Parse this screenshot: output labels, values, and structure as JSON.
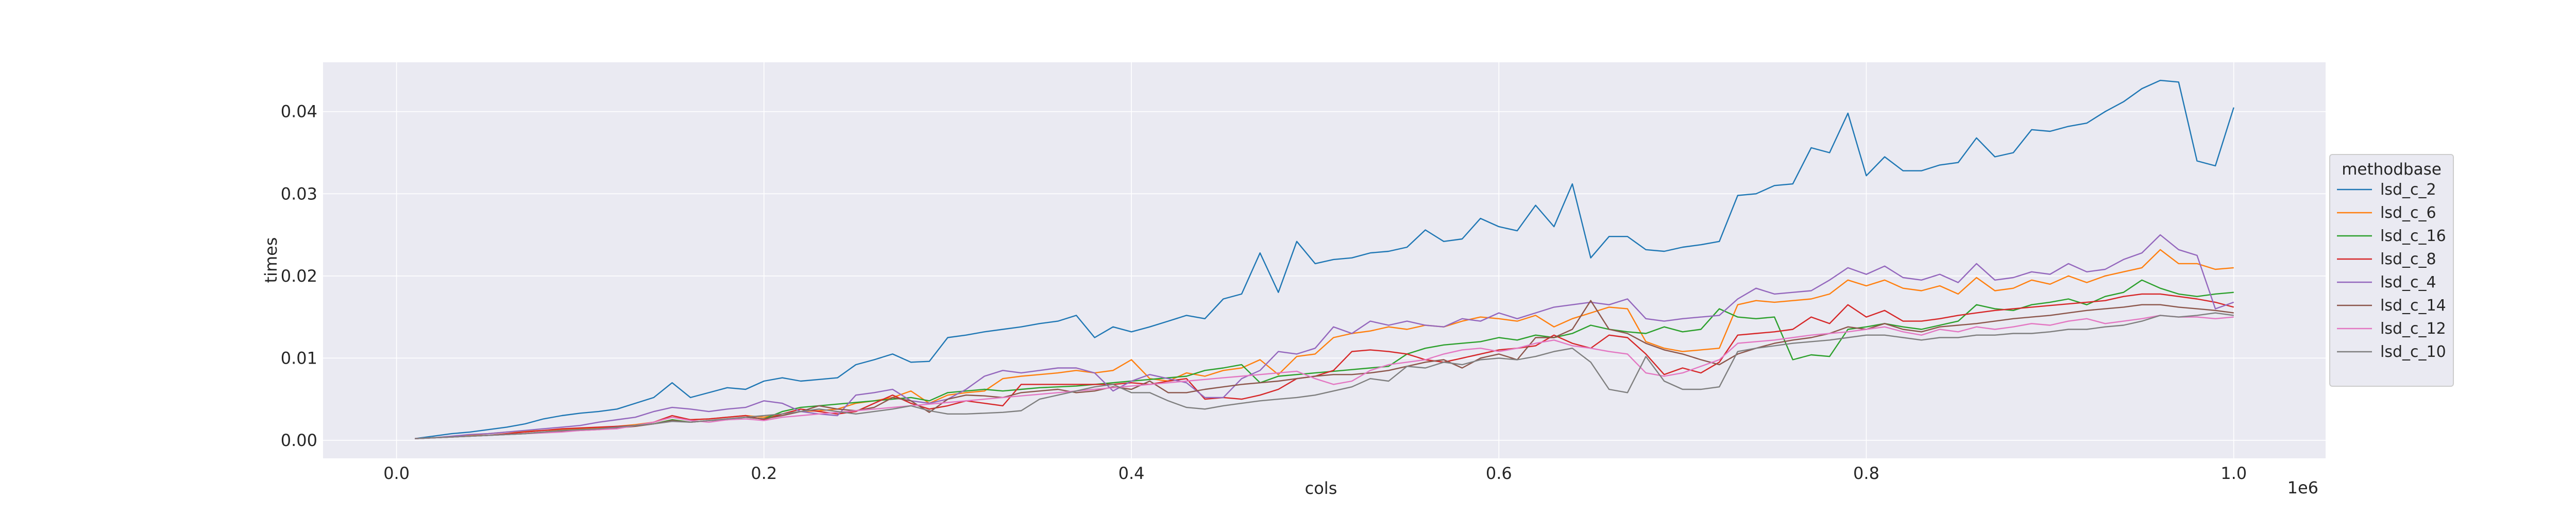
{
  "chart_data": {
    "type": "line",
    "title": "",
    "xlabel": "cols",
    "ylabel": "times",
    "x_offset_label": "1e6",
    "xlim": [
      -40000,
      1050000
    ],
    "ylim": [
      -0.0022,
      0.046
    ],
    "x_ticks": [
      0,
      200000,
      400000,
      600000,
      800000,
      1000000
    ],
    "x_tick_labels": [
      "0.0",
      "0.2",
      "0.4",
      "0.6",
      "0.8",
      "1.0"
    ],
    "y_ticks": [
      0,
      0.01,
      0.02,
      0.03,
      0.04
    ],
    "y_tick_labels": [
      "0.00",
      "0.01",
      "0.02",
      "0.03",
      "0.04"
    ],
    "grid": true,
    "legend": {
      "title": "methodbase",
      "placement": "right"
    },
    "x_start": 10000,
    "x_step": 10000,
    "series": [
      {
        "name": "lsd_c_2",
        "color": "#1f77b4",
        "values": [
          0.0002,
          0.0005,
          0.0008,
          0.001,
          0.0013,
          0.0016,
          0.002,
          0.0026,
          0.003,
          0.0033,
          0.0035,
          0.0038,
          0.0045,
          0.0052,
          0.007,
          0.0052,
          0.0058,
          0.0064,
          0.0062,
          0.0072,
          0.0076,
          0.0072,
          0.0074,
          0.0076,
          0.0092,
          0.0098,
          0.0105,
          0.0095,
          0.0096,
          0.0125,
          0.0128,
          0.0132,
          0.0135,
          0.0138,
          0.0142,
          0.0145,
          0.0152,
          0.0125,
          0.0138,
          0.0132,
          0.0138,
          0.0145,
          0.0152,
          0.0148,
          0.0172,
          0.0178,
          0.0228,
          0.018,
          0.0242,
          0.0215,
          0.022,
          0.0222,
          0.0228,
          0.023,
          0.0235,
          0.0256,
          0.0242,
          0.0245,
          0.027,
          0.026,
          0.0255,
          0.0286,
          0.026,
          0.0312,
          0.0222,
          0.0248,
          0.0248,
          0.0232,
          0.023,
          0.0235,
          0.0238,
          0.0242,
          0.0298,
          0.03,
          0.031,
          0.0312,
          0.0356,
          0.035,
          0.0398,
          0.0322,
          0.0345,
          0.0328,
          0.0328,
          0.0335,
          0.0338,
          0.0368,
          0.0345,
          0.035,
          0.0378,
          0.0376,
          0.0382,
          0.0386,
          0.04,
          0.0412,
          0.0428,
          0.0438,
          0.0436,
          0.034,
          0.0334,
          0.0405
        ]
      },
      {
        "name": "lsd_c_6",
        "color": "#ff7f0e",
        "values": [
          0.0002,
          0.0003,
          0.0004,
          0.0006,
          0.0008,
          0.001,
          0.0011,
          0.0012,
          0.0013,
          0.0014,
          0.0015,
          0.0017,
          0.0019,
          0.0022,
          0.0028,
          0.0025,
          0.0026,
          0.0028,
          0.003,
          0.0028,
          0.0032,
          0.0035,
          0.0036,
          0.0038,
          0.0045,
          0.0048,
          0.0052,
          0.006,
          0.0045,
          0.0055,
          0.0058,
          0.006,
          0.0075,
          0.0078,
          0.008,
          0.0082,
          0.0085,
          0.0082,
          0.0085,
          0.0098,
          0.0075,
          0.0072,
          0.0082,
          0.0078,
          0.0085,
          0.0088,
          0.0098,
          0.008,
          0.0102,
          0.0105,
          0.0125,
          0.013,
          0.0133,
          0.0138,
          0.0135,
          0.014,
          0.0138,
          0.0145,
          0.015,
          0.0148,
          0.0145,
          0.0152,
          0.0138,
          0.0148,
          0.0155,
          0.0162,
          0.016,
          0.012,
          0.0112,
          0.0108,
          0.011,
          0.0112,
          0.0165,
          0.017,
          0.0168,
          0.017,
          0.0172,
          0.0178,
          0.0195,
          0.0188,
          0.0195,
          0.0185,
          0.0182,
          0.0188,
          0.0178,
          0.0198,
          0.0182,
          0.0185,
          0.0195,
          0.019,
          0.02,
          0.0192,
          0.02,
          0.0205,
          0.021,
          0.0232,
          0.0215,
          0.0215,
          0.0208,
          0.021
        ]
      },
      {
        "name": "lsd_c_16",
        "color": "#2ca02c",
        "values": [
          0.0002,
          0.0003,
          0.0004,
          0.0005,
          0.0006,
          0.0007,
          0.0008,
          0.001,
          0.0012,
          0.0013,
          0.0014,
          0.0015,
          0.0018,
          0.002,
          0.0025,
          0.0022,
          0.0024,
          0.0025,
          0.0028,
          0.0026,
          0.0035,
          0.004,
          0.0042,
          0.0044,
          0.0046,
          0.0048,
          0.005,
          0.0052,
          0.0048,
          0.0058,
          0.006,
          0.0062,
          0.006,
          0.0062,
          0.0064,
          0.0065,
          0.0066,
          0.0068,
          0.007,
          0.0072,
          0.0074,
          0.0076,
          0.0078,
          0.0085,
          0.0088,
          0.0092,
          0.007,
          0.0078,
          0.008,
          0.0082,
          0.0084,
          0.0086,
          0.0088,
          0.009,
          0.0105,
          0.0112,
          0.0116,
          0.0118,
          0.012,
          0.0125,
          0.0122,
          0.0128,
          0.0125,
          0.013,
          0.014,
          0.0135,
          0.0132,
          0.013,
          0.0138,
          0.0132,
          0.0135,
          0.016,
          0.015,
          0.0148,
          0.015,
          0.0098,
          0.0104,
          0.0102,
          0.0135,
          0.0138,
          0.0142,
          0.0138,
          0.0135,
          0.014,
          0.0145,
          0.0165,
          0.016,
          0.0158,
          0.0165,
          0.0168,
          0.0172,
          0.0165,
          0.0175,
          0.018,
          0.0195,
          0.0185,
          0.0178,
          0.0175,
          0.0178,
          0.018
        ]
      },
      {
        "name": "lsd_c_8",
        "color": "#d62728",
        "values": [
          0.0002,
          0.0003,
          0.0004,
          0.0005,
          0.0006,
          0.0008,
          0.001,
          0.0012,
          0.0014,
          0.0015,
          0.0016,
          0.0017,
          0.0018,
          0.0022,
          0.003,
          0.0025,
          0.0026,
          0.0028,
          0.003,
          0.0025,
          0.0032,
          0.0038,
          0.0035,
          0.0032,
          0.0035,
          0.0045,
          0.0055,
          0.0045,
          0.0038,
          0.0042,
          0.0048,
          0.0045,
          0.0042,
          0.0068,
          0.0068,
          0.0068,
          0.0068,
          0.0068,
          0.0068,
          0.007,
          0.0068,
          0.0072,
          0.0075,
          0.005,
          0.0052,
          0.005,
          0.0055,
          0.0062,
          0.0075,
          0.0078,
          0.0085,
          0.0108,
          0.011,
          0.0108,
          0.0105,
          0.0098,
          0.0095,
          0.01,
          0.0105,
          0.011,
          0.0112,
          0.0115,
          0.0128,
          0.0118,
          0.0112,
          0.0128,
          0.0125,
          0.0105,
          0.008,
          0.0088,
          0.0082,
          0.0095,
          0.0128,
          0.013,
          0.0132,
          0.0135,
          0.015,
          0.0142,
          0.0165,
          0.015,
          0.0158,
          0.0145,
          0.0145,
          0.0148,
          0.0152,
          0.0155,
          0.0158,
          0.016,
          0.0162,
          0.0164,
          0.0166,
          0.0168,
          0.017,
          0.0175,
          0.0178,
          0.0178,
          0.0175,
          0.0172,
          0.0168,
          0.0162
        ]
      },
      {
        "name": "lsd_c_4",
        "color": "#9467bd",
        "values": [
          0.0002,
          0.0003,
          0.0005,
          0.0007,
          0.0008,
          0.001,
          0.0012,
          0.0014,
          0.0016,
          0.0018,
          0.0022,
          0.0025,
          0.0028,
          0.0035,
          0.004,
          0.0038,
          0.0035,
          0.0038,
          0.004,
          0.0048,
          0.0045,
          0.0035,
          0.0032,
          0.003,
          0.0055,
          0.0058,
          0.0062,
          0.0048,
          0.0045,
          0.005,
          0.0062,
          0.0078,
          0.0085,
          0.0082,
          0.0085,
          0.0088,
          0.0088,
          0.0082,
          0.006,
          0.0072,
          0.008,
          0.0075,
          0.007,
          0.0052,
          0.0052,
          0.0075,
          0.0085,
          0.0108,
          0.0105,
          0.0112,
          0.0138,
          0.013,
          0.0145,
          0.014,
          0.0145,
          0.014,
          0.0138,
          0.0148,
          0.0145,
          0.0155,
          0.0148,
          0.0155,
          0.0162,
          0.0165,
          0.0168,
          0.0165,
          0.0172,
          0.0148,
          0.0145,
          0.0148,
          0.015,
          0.0152,
          0.0172,
          0.0185,
          0.0178,
          0.018,
          0.0182,
          0.0195,
          0.021,
          0.0202,
          0.0212,
          0.0198,
          0.0195,
          0.0202,
          0.0192,
          0.0215,
          0.0195,
          0.0198,
          0.0205,
          0.0202,
          0.0215,
          0.0205,
          0.0208,
          0.022,
          0.0228,
          0.025,
          0.0232,
          0.0225,
          0.016,
          0.0168
        ]
      },
      {
        "name": "lsd_c_14",
        "color": "#8c564b",
        "values": [
          0.0002,
          0.0003,
          0.0004,
          0.0005,
          0.0006,
          0.0007,
          0.0008,
          0.001,
          0.0011,
          0.0012,
          0.0013,
          0.0015,
          0.0017,
          0.002,
          0.0024,
          0.0022,
          0.0024,
          0.0026,
          0.0028,
          0.0026,
          0.003,
          0.0035,
          0.0042,
          0.0038,
          0.0036,
          0.004,
          0.0052,
          0.0048,
          0.0034,
          0.005,
          0.0055,
          0.0054,
          0.0052,
          0.0058,
          0.006,
          0.0062,
          0.0058,
          0.006,
          0.0065,
          0.0062,
          0.0072,
          0.0058,
          0.0058,
          0.0062,
          0.0065,
          0.0068,
          0.007,
          0.0072,
          0.0075,
          0.0078,
          0.008,
          0.008,
          0.0082,
          0.0085,
          0.009,
          0.0095,
          0.0098,
          0.0088,
          0.01,
          0.0105,
          0.0098,
          0.0125,
          0.0125,
          0.0135,
          0.017,
          0.0135,
          0.013,
          0.0118,
          0.011,
          0.0105,
          0.0098,
          0.0092,
          0.0105,
          0.0112,
          0.0118,
          0.0122,
          0.0125,
          0.013,
          0.0138,
          0.0135,
          0.0142,
          0.0135,
          0.0132,
          0.0138,
          0.014,
          0.0142,
          0.0145,
          0.0148,
          0.015,
          0.0152,
          0.0155,
          0.0158,
          0.016,
          0.0162,
          0.0165,
          0.0165,
          0.0162,
          0.016,
          0.0158,
          0.0155
        ]
      },
      {
        "name": "lsd_c_12",
        "color": "#e377c2",
        "values": [
          0.0002,
          0.0003,
          0.0004,
          0.0005,
          0.0006,
          0.0007,
          0.0008,
          0.0009,
          0.001,
          0.0012,
          0.0013,
          0.0014,
          0.0018,
          0.0022,
          0.0028,
          0.0024,
          0.0022,
          0.0025,
          0.0026,
          0.0024,
          0.0028,
          0.003,
          0.0032,
          0.0034,
          0.0036,
          0.0038,
          0.004,
          0.0042,
          0.0044,
          0.0046,
          0.0048,
          0.005,
          0.0052,
          0.0054,
          0.0056,
          0.0058,
          0.006,
          0.0062,
          0.0064,
          0.0066,
          0.0068,
          0.007,
          0.0072,
          0.0074,
          0.0076,
          0.0078,
          0.008,
          0.0082,
          0.0084,
          0.0075,
          0.0068,
          0.0072,
          0.0085,
          0.0092,
          0.0095,
          0.0098,
          0.0105,
          0.011,
          0.0112,
          0.0108,
          0.0112,
          0.0118,
          0.0122,
          0.0115,
          0.0112,
          0.0108,
          0.0105,
          0.0082,
          0.0078,
          0.0082,
          0.009,
          0.0098,
          0.0118,
          0.012,
          0.0122,
          0.0125,
          0.0128,
          0.013,
          0.0132,
          0.0135,
          0.0138,
          0.0132,
          0.0128,
          0.0135,
          0.0132,
          0.0138,
          0.0135,
          0.0138,
          0.0142,
          0.014,
          0.0145,
          0.0148,
          0.0142,
          0.0145,
          0.0148,
          0.0152,
          0.015,
          0.015,
          0.0148,
          0.015
        ]
      },
      {
        "name": "lsd_c_10",
        "color": "#7f7f7f",
        "values": [
          0.0002,
          0.0003,
          0.0004,
          0.0005,
          0.0006,
          0.0007,
          0.0008,
          0.001,
          0.0012,
          0.0013,
          0.0014,
          0.0016,
          0.0018,
          0.002,
          0.0023,
          0.0022,
          0.0024,
          0.0026,
          0.0028,
          0.003,
          0.0032,
          0.0035,
          0.0038,
          0.0035,
          0.0032,
          0.0035,
          0.0038,
          0.0042,
          0.0036,
          0.0032,
          0.0032,
          0.0033,
          0.0034,
          0.0036,
          0.005,
          0.0055,
          0.006,
          0.0065,
          0.0068,
          0.0058,
          0.0058,
          0.0048,
          0.004,
          0.0038,
          0.0042,
          0.0045,
          0.0048,
          0.005,
          0.0052,
          0.0055,
          0.006,
          0.0065,
          0.0075,
          0.0072,
          0.009,
          0.0088,
          0.0095,
          0.0092,
          0.0098,
          0.01,
          0.0098,
          0.0102,
          0.0108,
          0.0112,
          0.0095,
          0.0062,
          0.0058,
          0.0102,
          0.0072,
          0.0062,
          0.0062,
          0.0065,
          0.0108,
          0.0112,
          0.0115,
          0.0118,
          0.012,
          0.0122,
          0.0125,
          0.0128,
          0.0128,
          0.0125,
          0.0122,
          0.0125,
          0.0125,
          0.0128,
          0.0128,
          0.013,
          0.013,
          0.0132,
          0.0135,
          0.0135,
          0.0138,
          0.014,
          0.0145,
          0.0152,
          0.015,
          0.0152,
          0.0155,
          0.0152
        ]
      }
    ]
  }
}
